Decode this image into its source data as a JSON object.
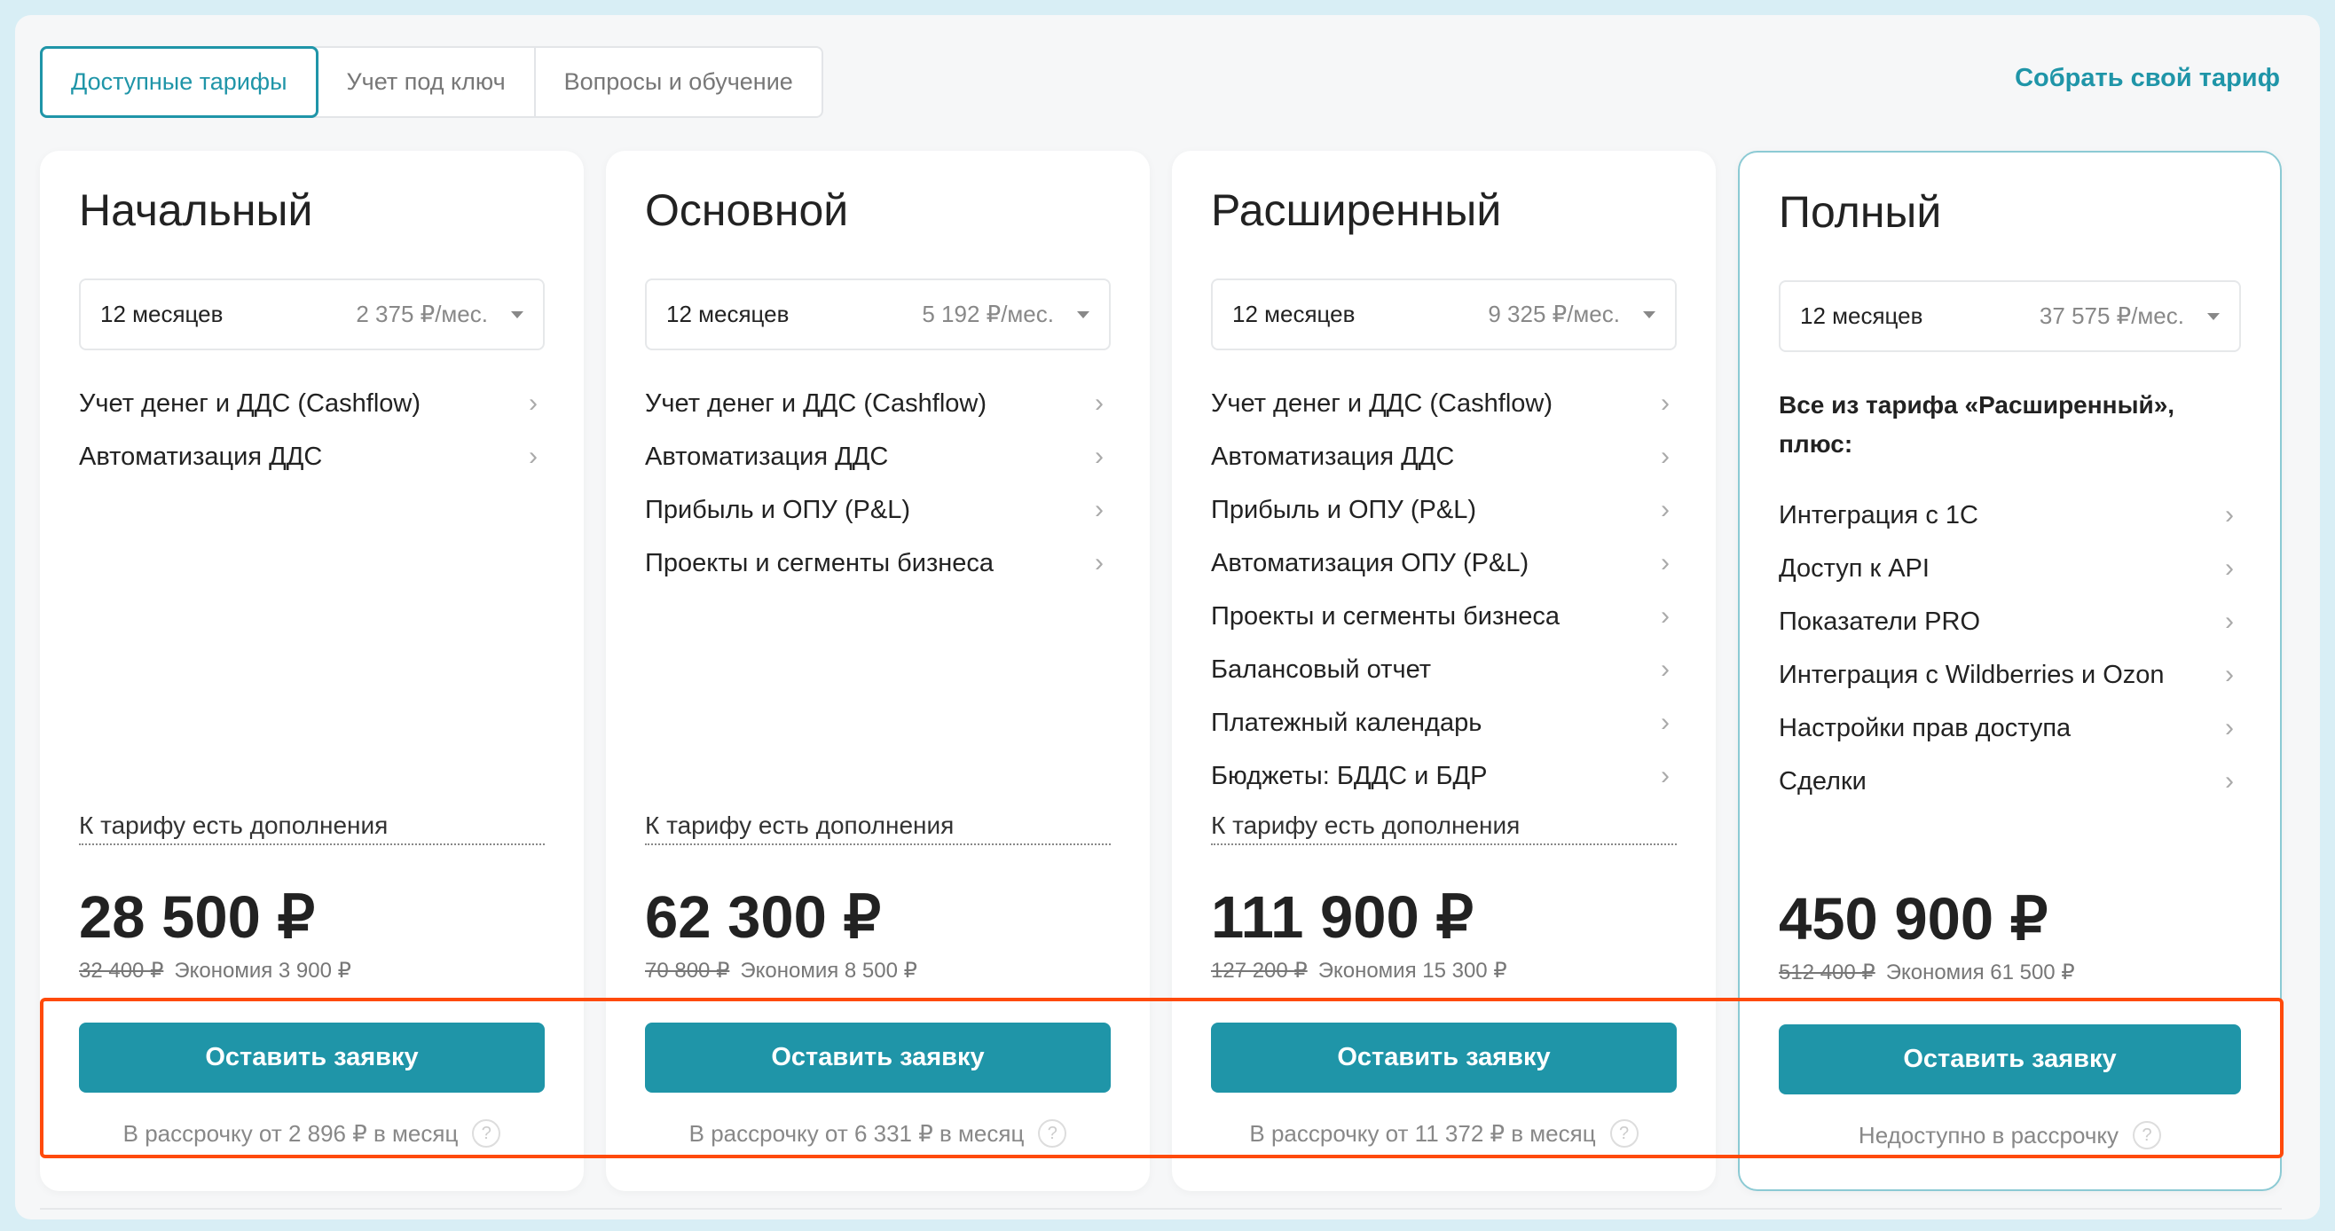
{
  "tabs": [
    {
      "label": "Доступные тарифы",
      "active": true
    },
    {
      "label": "Учет под ключ",
      "active": false
    },
    {
      "label": "Вопросы и обучение",
      "active": false
    }
  ],
  "custom_link": "Собрать свой тариф",
  "colors": {
    "accent": "#1f95a8",
    "highlight_box": "#ff4a0a",
    "frame": "#d8eef5"
  },
  "plans": [
    {
      "title": "Начальный",
      "period": "12 месяцев",
      "per_month": "2 375 ₽/мес.",
      "features": [
        "Учет денег и ДДС (Cashflow)",
        "Автоматизация ДДС"
      ],
      "addons": "К тарифу есть дополнения",
      "price": "28 500 ₽",
      "old_price": "32 400 ₽",
      "saving": "Экономия 3 900 ₽",
      "button": "Оставить заявку",
      "installment": "В рассрочку от 2 896 ₽ в месяц"
    },
    {
      "title": "Основной",
      "period": "12 месяцев",
      "per_month": "5 192 ₽/мес.",
      "features": [
        "Учет денег и ДДС (Cashflow)",
        "Автоматизация ДДС",
        "Прибыль и ОПУ (P&L)",
        "Проекты и сегменты бизнеса"
      ],
      "addons": "К тарифу есть дополнения",
      "price": "62 300 ₽",
      "old_price": "70 800 ₽",
      "saving": "Экономия 8 500 ₽",
      "button": "Оставить заявку",
      "installment": "В рассрочку от 6 331 ₽ в месяц"
    },
    {
      "title": "Расширенный",
      "period": "12 месяцев",
      "per_month": "9 325 ₽/мес.",
      "features": [
        "Учет денег и ДДС (Cashflow)",
        "Автоматизация ДДС",
        "Прибыль и ОПУ (P&L)",
        "Автоматизация ОПУ (P&L)",
        "Проекты и сегменты бизнеса",
        "Балансовый отчет",
        "Платежный календарь",
        "Бюджеты: БДДС и БДР"
      ],
      "addons": "К тарифу есть дополнения",
      "price": "111 900 ₽",
      "old_price": "127 200 ₽",
      "saving": "Экономия 15 300 ₽",
      "button": "Оставить заявку",
      "installment": "В рассрочку от 11 372 ₽ в месяц"
    },
    {
      "title": "Полный",
      "period": "12 месяцев",
      "per_month": "37 575 ₽/мес.",
      "intro": "Все из тарифа «Расширенный», плюс:",
      "features": [
        "Интеграция с 1С",
        "Доступ к API",
        "Показатели PRO",
        "Интеграция с Wildberries и Ozon",
        "Настройки прав доступа",
        "Сделки"
      ],
      "price": "450 900 ₽",
      "old_price": "512 400 ₽",
      "saving": "Экономия 61 500 ₽",
      "button": "Оставить заявку",
      "installment": "Недоступно в рассрочку",
      "highlighted": true
    }
  ]
}
